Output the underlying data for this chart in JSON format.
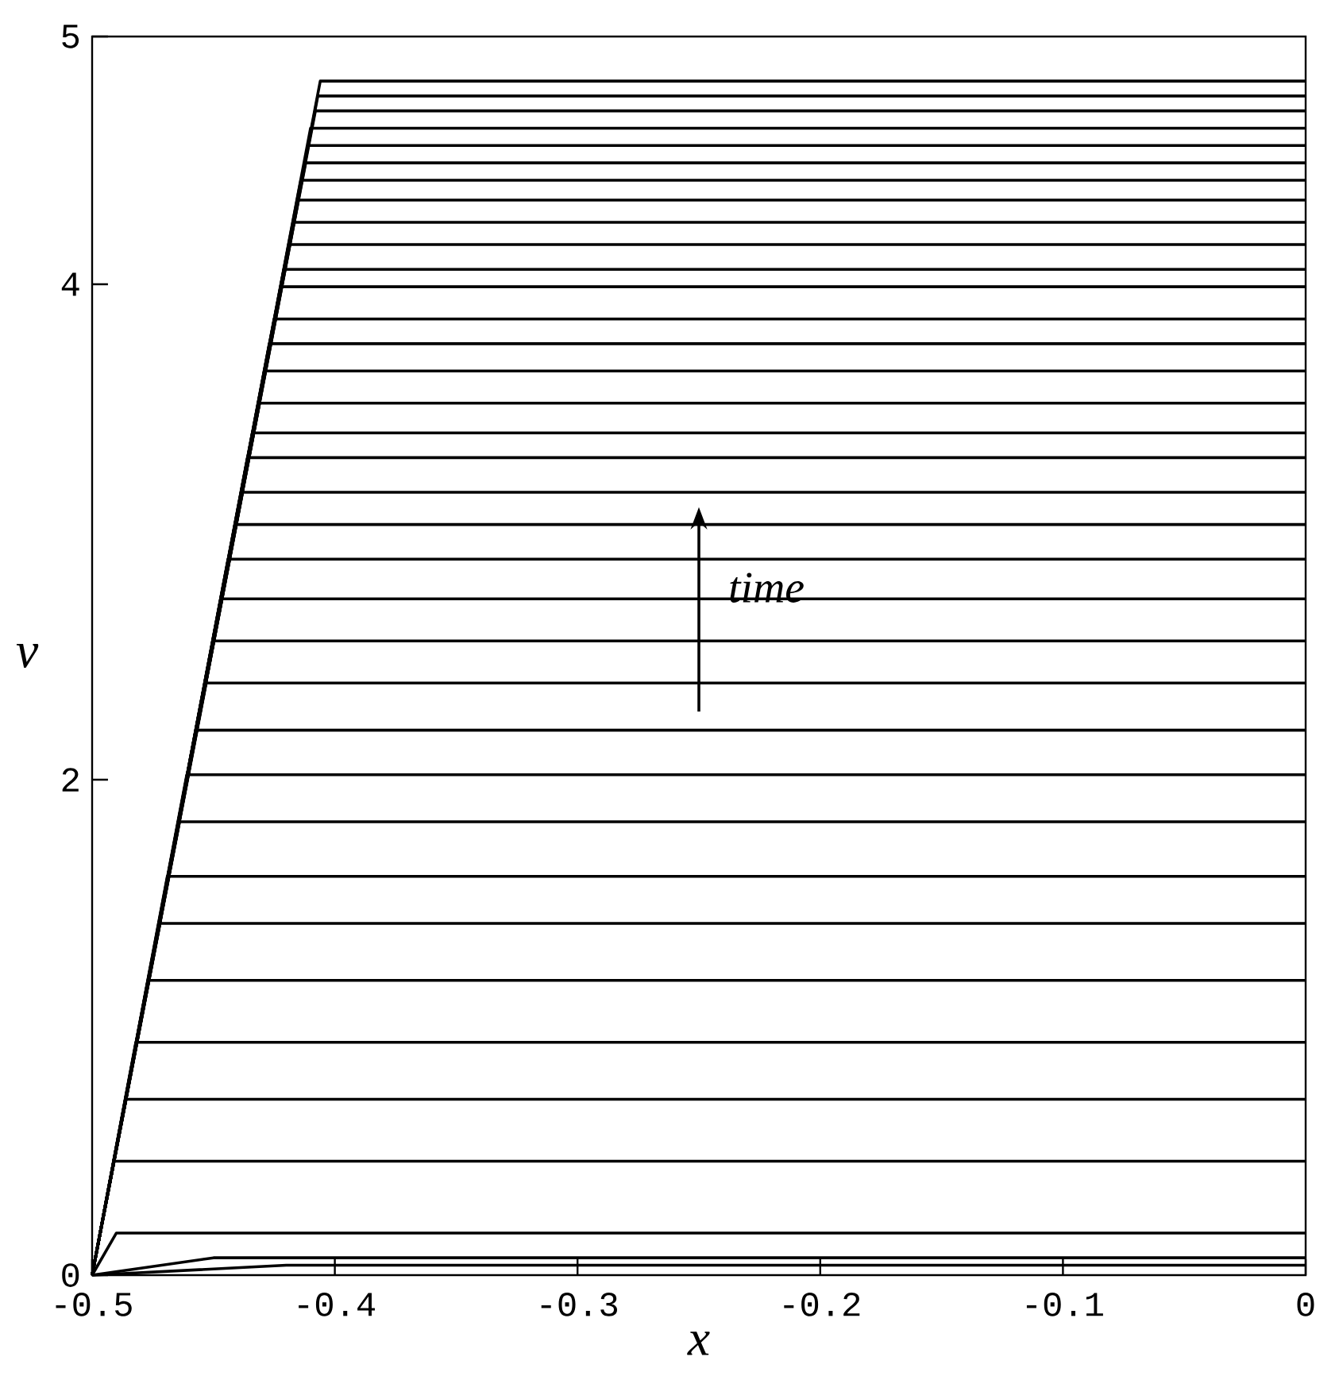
{
  "chart_data": {
    "type": "line",
    "xlabel": "x",
    "ylabel": "v",
    "color": "#000000",
    "legend": false,
    "xlim": [
      -0.5,
      0
    ],
    "ylim": [
      0,
      5
    ],
    "xticks": [
      -0.5,
      -0.4,
      -0.3,
      -0.2,
      -0.1,
      0
    ],
    "yticks": [
      0,
      2,
      4,
      5
    ],
    "annotations": [
      "time"
    ],
    "series": [
      {
        "x": [
          -0.5,
          -0.42,
          0
        ],
        "values": [
          0,
          0.04,
          0.04
        ]
      },
      {
        "x": [
          -0.5,
          -0.45,
          0
        ],
        "values": [
          0,
          0.07,
          0.07
        ]
      },
      {
        "x": [
          -0.5,
          -0.49,
          0
        ],
        "values": [
          0,
          0.17,
          0.17
        ]
      },
      {
        "x": [
          -0.5,
          -0.491,
          0
        ],
        "values": [
          0,
          0.46,
          0.46
        ]
      },
      {
        "x": [
          -0.5,
          -0.486,
          0
        ],
        "values": [
          0,
          0.71,
          0.71
        ]
      },
      {
        "x": [
          -0.5,
          -0.482,
          0
        ],
        "values": [
          0,
          0.94,
          0.94
        ]
      },
      {
        "x": [
          -0.5,
          -0.477,
          0
        ],
        "values": [
          0,
          1.19,
          1.19
        ]
      },
      {
        "x": [
          -0.5,
          -0.472,
          0
        ],
        "values": [
          0,
          1.42,
          1.42
        ]
      },
      {
        "x": [
          -0.5,
          -0.469,
          0
        ],
        "values": [
          0,
          1.61,
          1.61
        ]
      },
      {
        "x": [
          -0.5,
          -0.464,
          0
        ],
        "values": [
          0,
          1.83,
          1.83
        ]
      },
      {
        "x": [
          -0.5,
          -0.461,
          0
        ],
        "values": [
          0,
          2.02,
          2.02
        ]
      },
      {
        "x": [
          -0.5,
          -0.457,
          0
        ],
        "values": [
          0,
          2.2,
          2.2
        ]
      },
      {
        "x": [
          -0.5,
          -0.453,
          0
        ],
        "values": [
          0,
          2.39,
          2.39
        ]
      },
      {
        "x": [
          -0.5,
          -0.45,
          0
        ],
        "values": [
          0,
          2.56,
          2.56
        ]
      },
      {
        "x": [
          -0.5,
          -0.447,
          0
        ],
        "values": [
          0,
          2.73,
          2.73
        ]
      },
      {
        "x": [
          -0.5,
          -0.444,
          0
        ],
        "values": [
          0,
          2.89,
          2.89
        ]
      },
      {
        "x": [
          -0.5,
          -0.441,
          0
        ],
        "values": [
          0,
          3.03,
          3.03
        ]
      },
      {
        "x": [
          -0.5,
          -0.438,
          0
        ],
        "values": [
          0,
          3.16,
          3.16
        ]
      },
      {
        "x": [
          -0.5,
          -0.436,
          0
        ],
        "values": [
          0,
          3.3,
          3.3
        ]
      },
      {
        "x": [
          -0.5,
          -0.434,
          0
        ],
        "values": [
          0,
          3.4,
          3.4
        ]
      },
      {
        "x": [
          -0.5,
          -0.431,
          0
        ],
        "values": [
          0,
          3.52,
          3.52
        ]
      },
      {
        "x": [
          -0.5,
          -0.429,
          0
        ],
        "values": [
          0,
          3.65,
          3.65
        ]
      },
      {
        "x": [
          -0.5,
          -0.427,
          0
        ],
        "values": [
          0,
          3.76,
          3.76
        ]
      },
      {
        "x": [
          -0.5,
          -0.425,
          0
        ],
        "values": [
          0,
          3.86,
          3.86
        ]
      },
      {
        "x": [
          -0.5,
          -0.422,
          0
        ],
        "values": [
          0,
          3.99,
          3.99
        ]
      },
      {
        "x": [
          -0.5,
          -0.421,
          0
        ],
        "values": [
          0,
          4.06,
          4.06
        ]
      },
      {
        "x": [
          -0.5,
          -0.419,
          0
        ],
        "values": [
          0,
          4.16,
          4.16
        ]
      },
      {
        "x": [
          -0.5,
          -0.417,
          0
        ],
        "values": [
          0,
          4.25,
          4.25
        ]
      },
      {
        "x": [
          -0.5,
          -0.415,
          0
        ],
        "values": [
          0,
          4.34,
          4.34
        ]
      },
      {
        "x": [
          -0.5,
          -0.414,
          0
        ],
        "values": [
          0,
          4.42,
          4.42
        ]
      },
      {
        "x": [
          -0.5,
          -0.412,
          0
        ],
        "values": [
          0,
          4.49,
          4.49
        ]
      },
      {
        "x": [
          -0.5,
          -0.411,
          0
        ],
        "values": [
          0,
          4.56,
          4.56
        ]
      },
      {
        "x": [
          -0.5,
          -0.41,
          0
        ],
        "values": [
          0,
          4.63,
          4.63
        ]
      },
      {
        "x": [
          -0.5,
          -0.408,
          0
        ],
        "values": [
          0,
          4.7,
          4.7
        ]
      },
      {
        "x": [
          -0.5,
          -0.407,
          0
        ],
        "values": [
          0,
          4.76,
          4.76
        ]
      },
      {
        "x": [
          -0.5,
          -0.406,
          0
        ],
        "values": [
          0,
          4.82,
          4.82
        ]
      }
    ]
  }
}
